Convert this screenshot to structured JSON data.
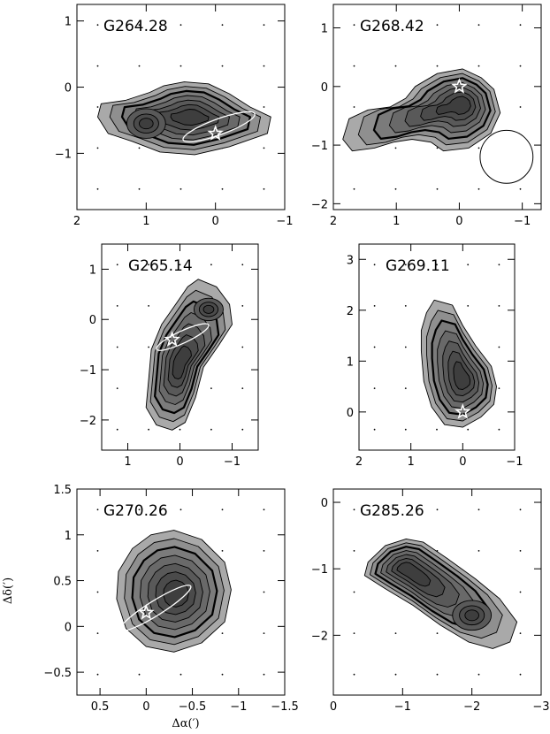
{
  "figure": {
    "xlabel": "Δα(′)",
    "ylabel": "Δδ(′)"
  },
  "chart_data": [
    {
      "type": "contour",
      "title": "G264.28",
      "xlim": [
        2,
        -1
      ],
      "ylim": [
        -1.85,
        1.25
      ],
      "xticks": [
        "2",
        "1",
        "0",
        "−1"
      ],
      "yticks": [
        "1",
        "0",
        "−1"
      ],
      "star": {
        "x": 0,
        "y": -0.7
      },
      "ellipse": {
        "cx": -0.05,
        "cy": -0.6,
        "rx": 0.55,
        "ry": 0.12,
        "angle_deg": 20
      },
      "peaks": [
        {
          "x": 0.35,
          "y": -0.45
        },
        {
          "x": 1.0,
          "y": -0.55
        }
      ]
    },
    {
      "type": "contour",
      "title": "G268.42",
      "xlim": [
        2,
        -1.3
      ],
      "ylim": [
        -2.1,
        1.4
      ],
      "xticks": [
        "2",
        "1",
        "0",
        "−1"
      ],
      "yticks": [
        "1",
        "0",
        "−1",
        "−2"
      ],
      "star": {
        "x": 0,
        "y": 0
      },
      "beam": {
        "x": -0.75,
        "y": -1.2,
        "r": 0.42
      },
      "peaks": [
        {
          "x": -0.05,
          "y": -0.3
        }
      ]
    },
    {
      "type": "contour",
      "title": "G265.14",
      "xlim": [
        1.5,
        -1.5
      ],
      "ylim": [
        -2.6,
        1.5
      ],
      "xticks": [
        "1",
        "0",
        "−1"
      ],
      "yticks": [
        "1",
        "0",
        "−1",
        "−2"
      ],
      "star": {
        "x": 0.15,
        "y": -0.4
      },
      "ellipse": {
        "cx": -0.05,
        "cy": -0.35,
        "rx": 0.55,
        "ry": 0.12,
        "angle_deg": 25
      },
      "peaks": [
        {
          "x": 0.0,
          "y": -0.9
        },
        {
          "x": -0.55,
          "y": 0.2
        }
      ]
    },
    {
      "type": "contour",
      "title": "G269.11",
      "xlim": [
        2,
        -1
      ],
      "ylim": [
        -0.75,
        3.3
      ],
      "xticks": [
        "2",
        "1",
        "0",
        "−1"
      ],
      "yticks": [
        "3",
        "2",
        "1",
        "0"
      ],
      "star": {
        "x": 0,
        "y": 0
      },
      "peaks": [
        {
          "x": 0.0,
          "y": 0.65
        }
      ]
    },
    {
      "type": "contour",
      "title": "G270.26",
      "xlim": [
        0.75,
        -1.5
      ],
      "ylim": [
        -0.75,
        1.5
      ],
      "xticks": [
        "0.5",
        "0",
        "−0.5",
        "−1",
        "−1.5"
      ],
      "yticks": [
        "1.5",
        "1",
        "0.5",
        "0",
        "−0.5"
      ],
      "star": {
        "x": 0,
        "y": 0.15
      },
      "ellipse": {
        "cx": -0.1,
        "cy": 0.2,
        "rx": 0.45,
        "ry": 0.08,
        "angle_deg": 32
      },
      "peaks": [
        {
          "x": -0.33,
          "y": 0.35
        }
      ]
    },
    {
      "type": "contour",
      "title": "G285.26",
      "xlim": [
        0,
        -3
      ],
      "ylim": [
        -2.9,
        0.2
      ],
      "xticks": [
        "0",
        "−1",
        "−2",
        "−3"
      ],
      "yticks": [
        "0",
        "−1",
        "−2"
      ],
      "peaks": [
        {
          "x": -1.05,
          "y": -1.0
        },
        {
          "x": -2.0,
          "y": -1.7
        }
      ]
    }
  ]
}
